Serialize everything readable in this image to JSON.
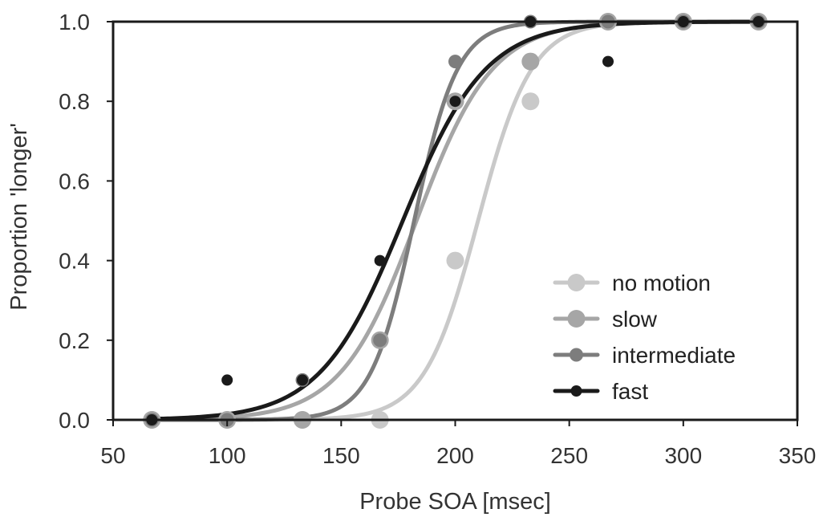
{
  "chart_data": {
    "type": "scatter",
    "xlabel": "Probe SOA [msec]",
    "ylabel": "Proportion 'longer'",
    "xlim": [
      50,
      350
    ],
    "ylim": [
      0,
      1
    ],
    "x_ticks": [
      50,
      100,
      150,
      200,
      250,
      300,
      350
    ],
    "x_tick_labels": [
      "50",
      "100",
      "150",
      "200",
      "250",
      "300",
      "350"
    ],
    "y_ticks": [
      0,
      0.2,
      0.4,
      0.6,
      0.8,
      1.0
    ],
    "y_tick_labels": [
      "0.0",
      "0.2",
      "0.4",
      "0.6",
      "0.8",
      "1.0"
    ],
    "grid": false,
    "legend_position": "bottom-right",
    "x": [
      67,
      100,
      133,
      167,
      200,
      233,
      267,
      300,
      333
    ],
    "series": [
      {
        "name": "no motion",
        "color": "#c9c9c9",
        "values": [
          0,
          0,
          0,
          0,
          0.4,
          0.8,
          1.0,
          1.0,
          1.0
        ],
        "fit": {
          "pse": 210,
          "slope": 0.085
        },
        "marker_size": "large"
      },
      {
        "name": "slow",
        "color": "#a6a6a6",
        "values": [
          0,
          0,
          0,
          0.2,
          0.8,
          0.9,
          1.0,
          1.0,
          1.0
        ],
        "fit": {
          "pse": 183,
          "slope": 0.06
        },
        "marker_size": "large"
      },
      {
        "name": "intermediate",
        "color": "#7d7d7d",
        "values": [
          0,
          0,
          0.1,
          0.2,
          0.9,
          1.0,
          1.0,
          1.0,
          1.0
        ],
        "fit": {
          "pse": 182,
          "slope": 0.105
        },
        "marker_size": "medium"
      },
      {
        "name": "fast",
        "color": "#1a1a1a",
        "values": [
          0,
          0.1,
          0.1,
          0.4,
          0.8,
          1.0,
          0.9,
          1.0,
          1.0
        ],
        "fit": {
          "pse": 177,
          "slope": 0.055
        },
        "marker_size": "small"
      }
    ]
  }
}
